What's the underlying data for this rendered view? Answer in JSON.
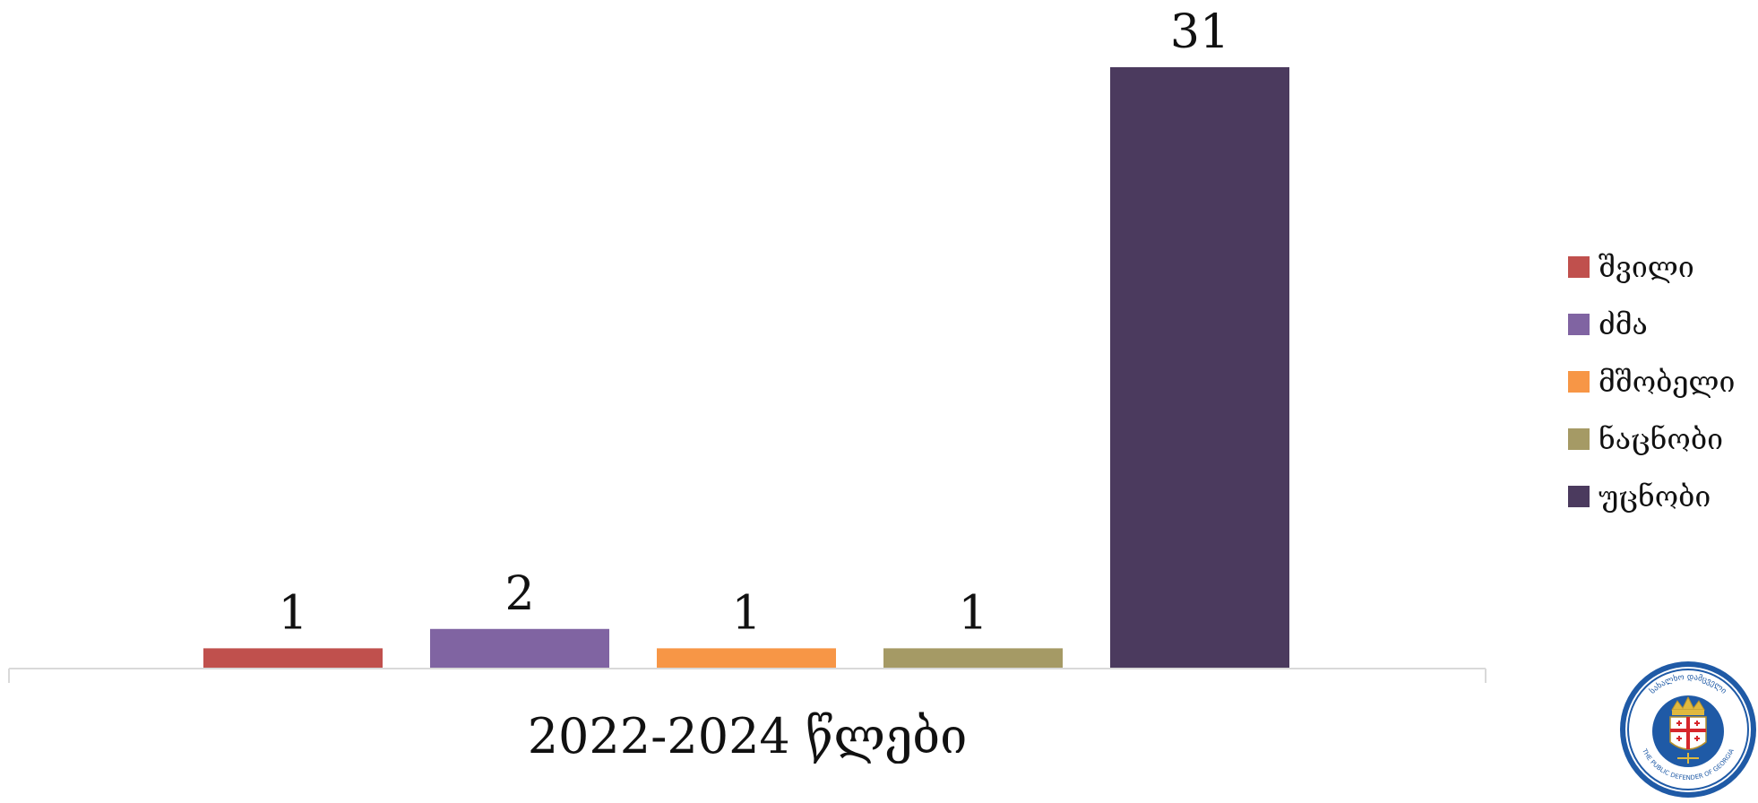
{
  "chart_data": {
    "type": "bar",
    "categories": [
      "2022-2024 წლები"
    ],
    "series": [
      {
        "name": "შვილი",
        "values": [
          1
        ],
        "color": "#c0504d"
      },
      {
        "name": "ძმა",
        "values": [
          2
        ],
        "color": "#8064a2"
      },
      {
        "name": "მშობელი",
        "values": [
          1
        ],
        "color": "#f79646"
      },
      {
        "name": "ნაცნობი",
        "values": [
          1
        ],
        "color": "#a59a65"
      },
      {
        "name": "უცნობი",
        "values": [
          31
        ],
        "color": "#4b3a5e"
      }
    ],
    "ylim": [
      0,
      31
    ],
    "grid": false,
    "legend_position": "right"
  },
  "logo": {
    "icon": "public-defender-seal-icon",
    "text_top": "სახალხო დამცველი",
    "text_bottom": "THE PUBLIC DEFENDER OF GEORGIA"
  }
}
